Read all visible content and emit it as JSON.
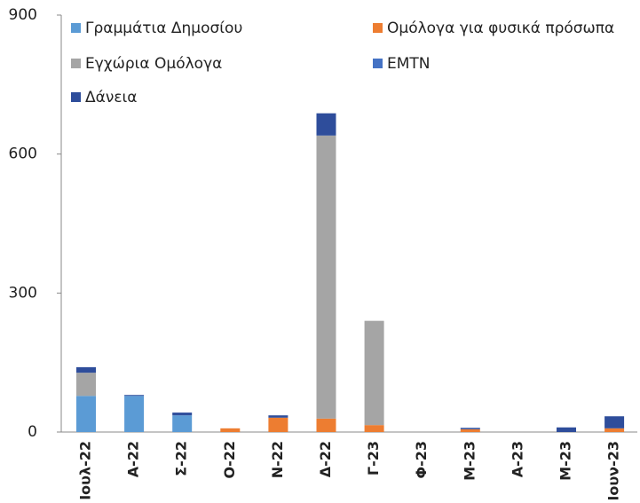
{
  "chart_data": {
    "type": "stacked-bar",
    "categories": [
      "Ιουλ-22",
      "Α-22",
      "Σ-22",
      "Ο-22",
      "Ν-22",
      "Δ-22",
      "Γ-23",
      "Φ-23",
      "Μ-23",
      "Α-23",
      "Μ-23",
      "Ιουν-23"
    ],
    "series": [
      {
        "name": "Γραμμάτια Δημοσίου",
        "color": "#5b9bd5",
        "values": [
          78,
          78,
          36,
          0,
          0,
          0,
          0,
          0,
          0,
          0,
          0,
          0
        ]
      },
      {
        "name": "Ομόλογα για φυσικά πρόσωπα",
        "color": "#ed7d31",
        "values": [
          0,
          0,
          0,
          8,
          31,
          29,
          15,
          0,
          6,
          0,
          0,
          8
        ]
      },
      {
        "name": "Εγχώρια Ομόλογα",
        "color": "#a5a5a5",
        "values": [
          50,
          0,
          0,
          0,
          0,
          611,
          225,
          0,
          0,
          0,
          0,
          0
        ]
      },
      {
        "name": "EMTN",
        "color": "#4472c4",
        "values": [
          0,
          0,
          0,
          0,
          0,
          0,
          0,
          0,
          0,
          0,
          0,
          0
        ]
      },
      {
        "name": "Δάνεια",
        "color": "#2e4d9b",
        "values": [
          12,
          2,
          6,
          0,
          5,
          48,
          0,
          0,
          3,
          0,
          10,
          26
        ]
      }
    ],
    "ylim": [
      0,
      900
    ],
    "yticks": [
      0,
      300,
      600,
      900
    ],
    "grid": false
  }
}
